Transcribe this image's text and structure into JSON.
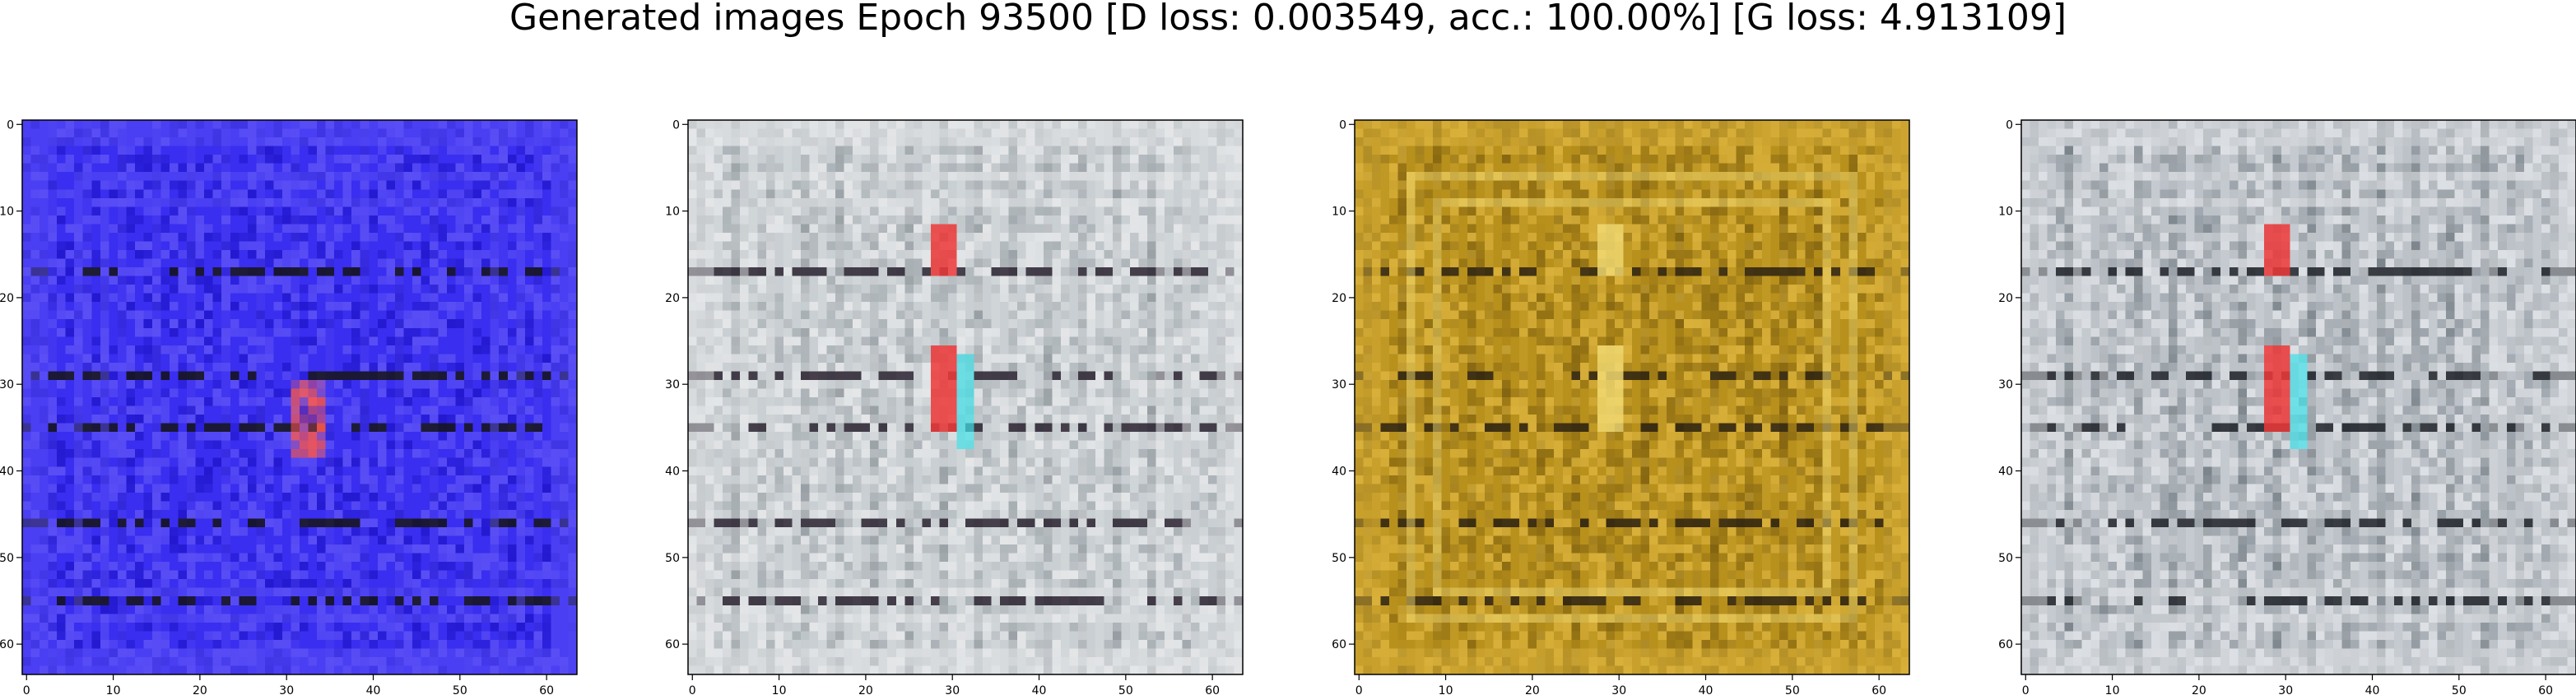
{
  "figure": {
    "suptitle": "Generated images Epoch 93500 [D loss: 0.003549, acc.: 100.00%] [G loss: 4.913109]"
  },
  "chart_data": [
    {
      "type": "heatmap",
      "title": "",
      "xlabel": "",
      "ylabel": "",
      "xlim": [
        -0.5,
        63.5
      ],
      "ylim": [
        63.5,
        -0.5
      ],
      "x_ticks": [
        0,
        10,
        20,
        30,
        40,
        50,
        60
      ],
      "y_ticks": [
        0,
        10,
        20,
        30,
        40,
        50,
        60
      ],
      "dominant_color": "#3a2ef0",
      "description_palette": [
        "#3a2ef0",
        "#5a4ff5",
        "#1e14c8",
        "#8a7cf8",
        "#ff5a4a",
        "#141414"
      ],
      "grid": false
    },
    {
      "type": "heatmap",
      "title": "",
      "xlabel": "",
      "ylabel": "",
      "xlim": [
        -0.5,
        63.5
      ],
      "ylim": [
        63.5,
        -0.5
      ],
      "x_ticks": [
        0,
        10,
        20,
        30,
        40,
        50,
        60
      ],
      "y_ticks": [
        0,
        10,
        20,
        30,
        40,
        50,
        60
      ],
      "dominant_color": "#c9cfd2",
      "description_palette": [
        "#c9cfd2",
        "#e4e6e8",
        "#a4abb0",
        "#6c7378",
        "#ef3838",
        "#40e0e8",
        "#2a2230"
      ],
      "grid": false
    },
    {
      "type": "heatmap",
      "title": "",
      "xlabel": "",
      "ylabel": "",
      "xlim": [
        -0.5,
        63.5
      ],
      "ylim": [
        63.5,
        -0.5
      ],
      "x_ticks": [
        0,
        10,
        20,
        30,
        40,
        50,
        60
      ],
      "y_ticks": [
        0,
        10,
        20,
        30,
        40,
        50,
        60
      ],
      "dominant_color": "#b8901c",
      "description_palette": [
        "#b8901c",
        "#d8b03a",
        "#8a6a12",
        "#5a4208",
        "#f0d870",
        "#e83a2a",
        "#2a2010"
      ],
      "grid": false
    },
    {
      "type": "heatmap",
      "title": "",
      "xlabel": "",
      "ylabel": "",
      "xlim": [
        -0.5,
        63.5
      ],
      "ylim": [
        63.5,
        -0.5
      ],
      "x_ticks": [
        0,
        10,
        20,
        30,
        40,
        50,
        60
      ],
      "y_ticks": [
        0,
        10,
        20,
        30,
        40,
        50,
        60
      ],
      "dominant_color": "#bcc2c8",
      "description_palette": [
        "#bcc2c8",
        "#dde0e4",
        "#8f979e",
        "#3e4a50",
        "#ef3838",
        "#40e0e8",
        "#1e2228"
      ],
      "grid": false
    }
  ]
}
